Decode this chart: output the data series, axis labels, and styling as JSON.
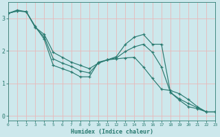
{
  "xlabel": "Humidex (Indice chaleur)",
  "bg_color": "#cde8ec",
  "grid_color": "#e8b8b8",
  "line_color": "#2a7a70",
  "xlim": [
    0,
    23
  ],
  "ylim": [
    -0.15,
    3.5
  ],
  "xticks": [
    0,
    1,
    2,
    3,
    4,
    5,
    6,
    7,
    8,
    9,
    10,
    11,
    12,
    13,
    14,
    15,
    16,
    17,
    18,
    19,
    20,
    21,
    22,
    23
  ],
  "yticks": [
    0,
    1,
    2,
    3
  ],
  "line1_x": [
    0,
    1,
    2,
    3,
    4,
    5,
    6,
    7,
    8,
    9,
    10,
    11,
    12,
    13,
    14,
    15,
    16,
    17,
    18,
    19,
    20,
    21,
    22,
    23
  ],
  "line1_y": [
    3.15,
    3.25,
    3.2,
    2.75,
    2.35,
    1.55,
    1.45,
    1.35,
    1.2,
    1.2,
    1.65,
    1.72,
    1.75,
    1.78,
    1.8,
    1.5,
    1.15,
    0.82,
    0.78,
    0.68,
    0.5,
    0.28,
    0.12,
    0.12
  ],
  "line2_x": [
    0,
    1,
    2,
    3,
    4,
    5,
    6,
    7,
    8,
    9,
    10,
    11,
    12,
    13,
    14,
    15,
    16,
    17,
    18,
    19,
    20,
    21,
    22,
    23
  ],
  "line2_y": [
    3.15,
    3.22,
    3.2,
    2.72,
    2.5,
    1.95,
    1.8,
    1.65,
    1.55,
    1.45,
    1.62,
    1.72,
    1.82,
    2.2,
    2.42,
    2.5,
    2.2,
    2.2,
    0.72,
    0.48,
    0.28,
    0.22,
    0.12,
    0.12
  ],
  "line3_x": [
    0,
    1,
    2,
    3,
    4,
    5,
    6,
    7,
    8,
    9,
    10,
    11,
    12,
    13,
    14,
    15,
    16,
    17,
    18,
    19,
    20,
    21,
    22,
    23
  ],
  "line3_y": [
    3.15,
    3.22,
    3.2,
    2.72,
    2.42,
    1.75,
    1.62,
    1.52,
    1.38,
    1.32,
    1.62,
    1.72,
    1.78,
    1.98,
    2.12,
    2.2,
    1.95,
    1.5,
    0.72,
    0.52,
    0.38,
    0.25,
    0.12,
    0.12
  ]
}
